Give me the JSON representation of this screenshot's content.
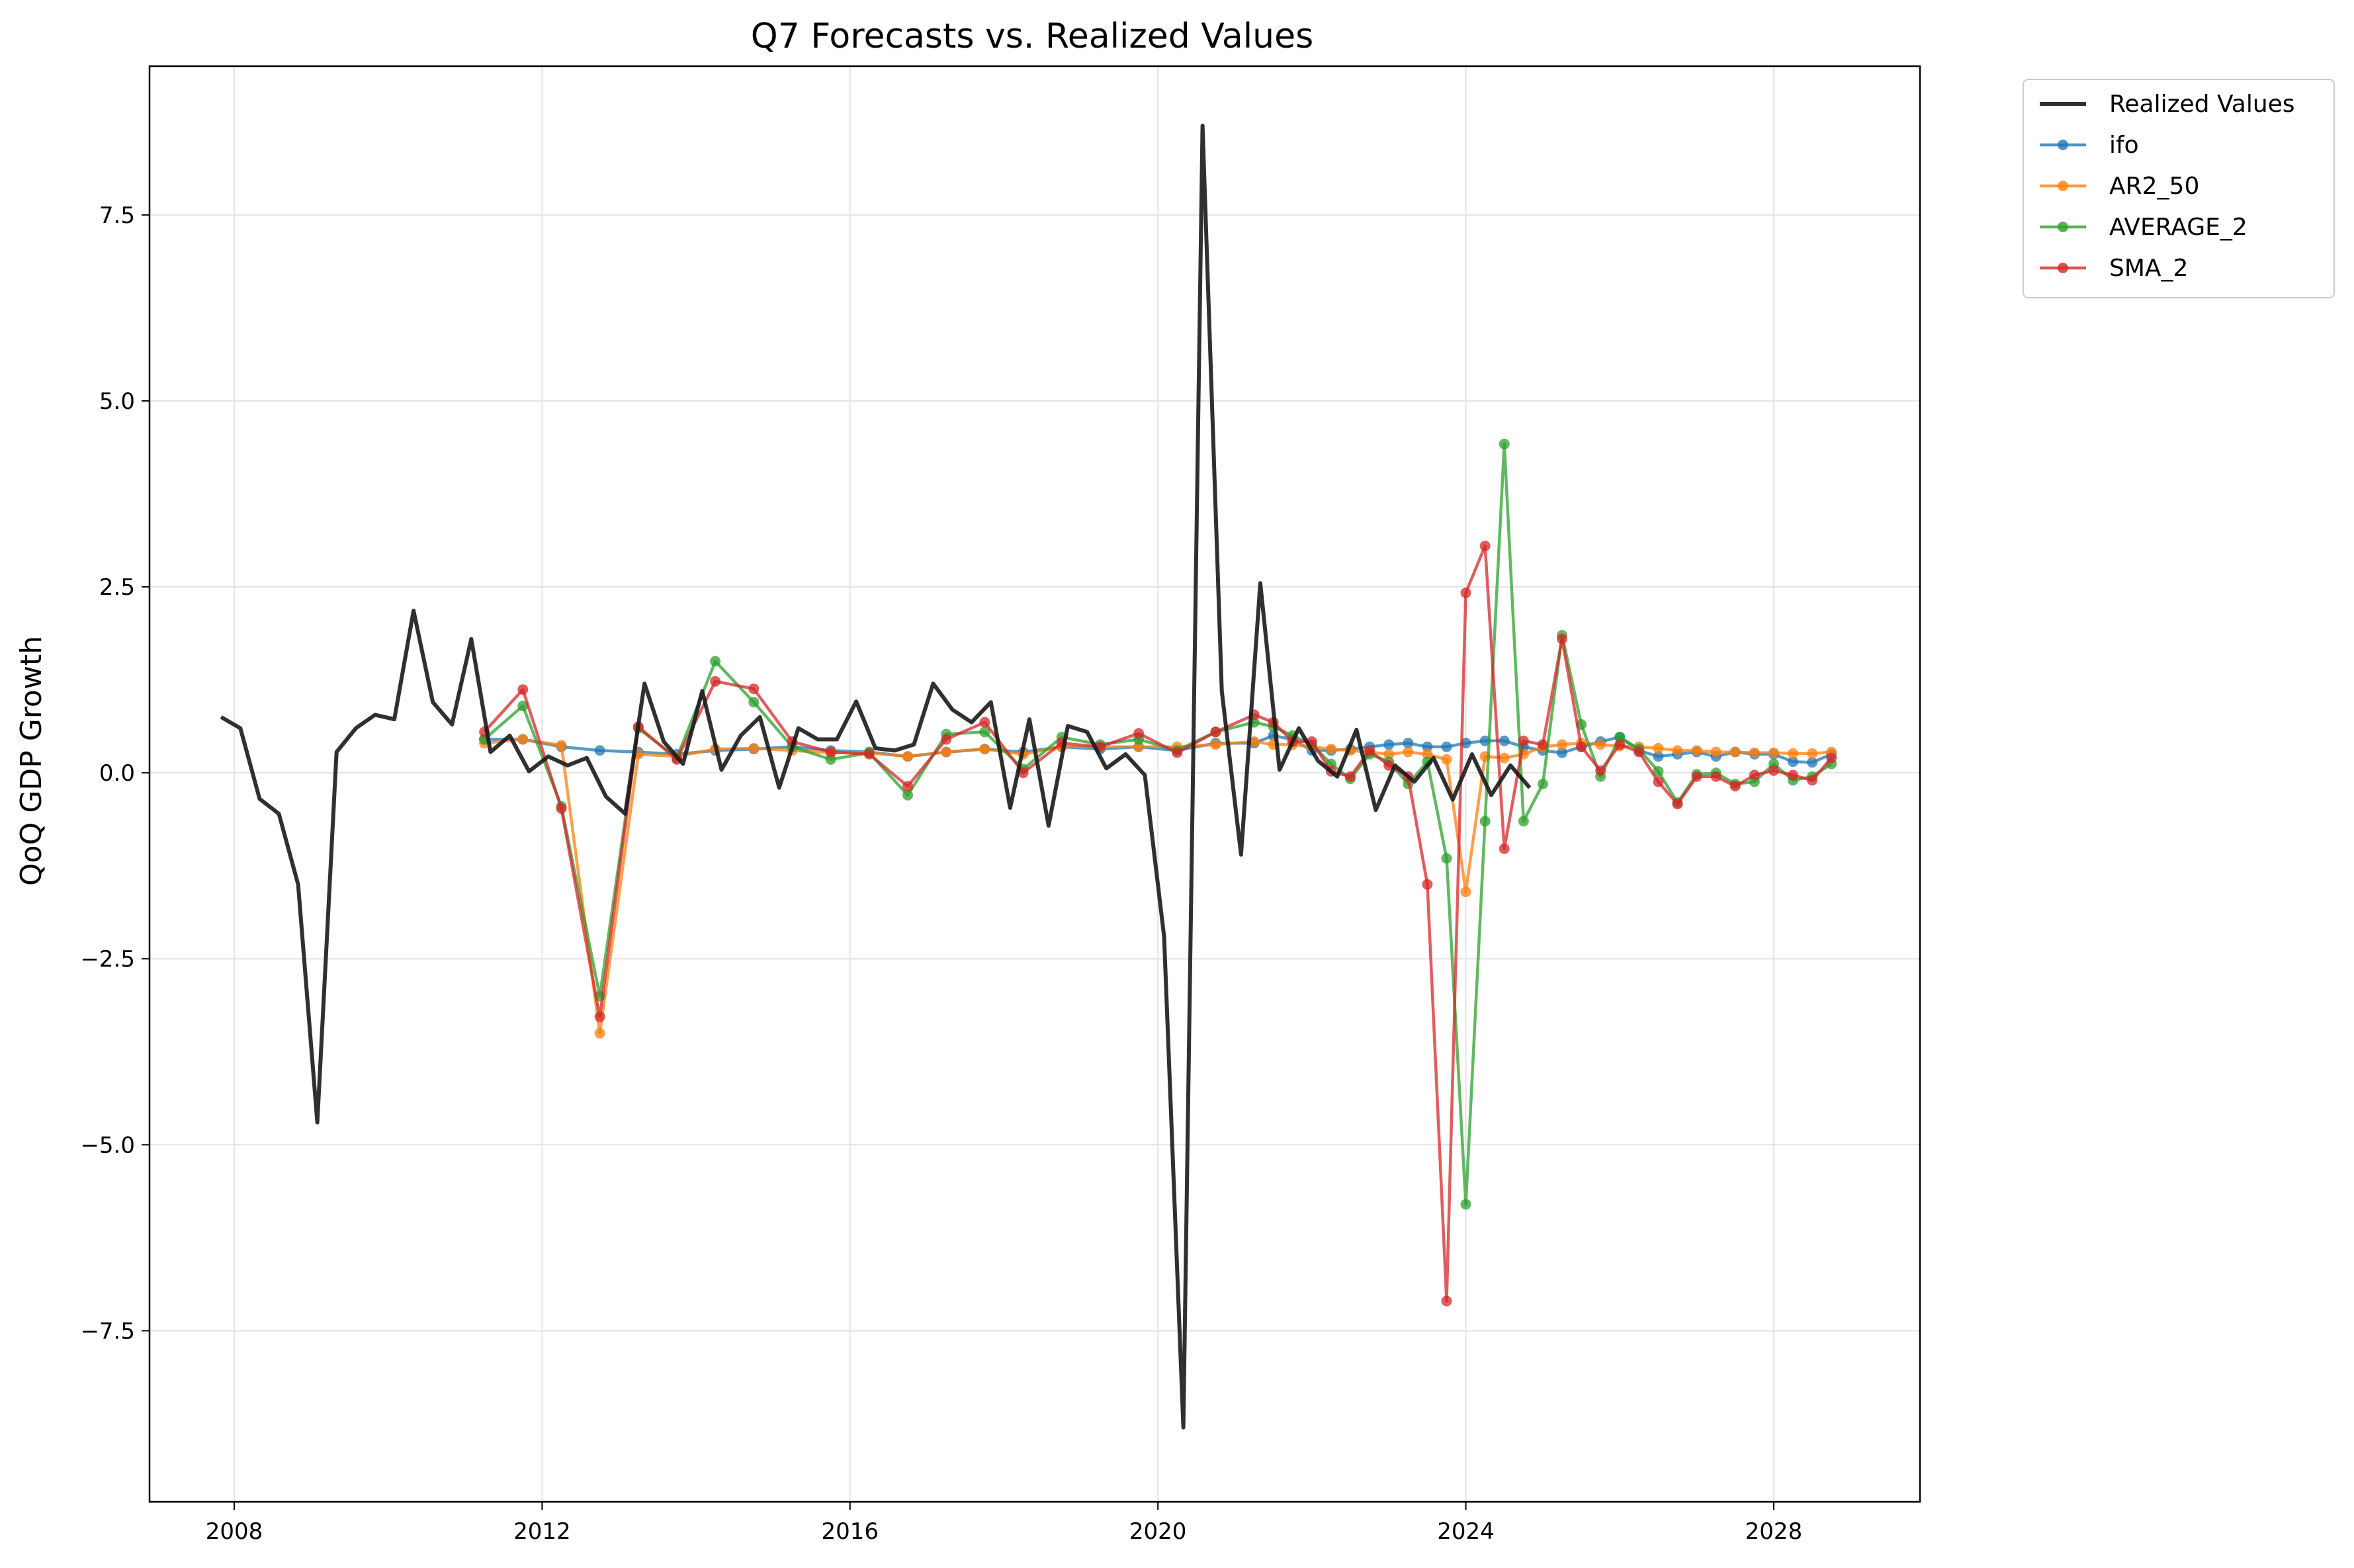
{
  "chart_data": {
    "type": "line",
    "title": "Q7 Forecasts vs. Realized Values",
    "xlabel": "",
    "ylabel": "QoQ GDP Growth",
    "xlim": [
      2006.9,
      2029.9
    ],
    "ylim": [
      -9.8,
      9.5
    ],
    "x_ticks": [
      2008,
      2012,
      2016,
      2020,
      2024,
      2028
    ],
    "x_tick_labels": [
      "2008",
      "2012",
      "2016",
      "2020",
      "2024",
      "2028"
    ],
    "y_ticks": [
      -7.5,
      -5.0,
      -2.5,
      0.0,
      2.5,
      5.0,
      7.5
    ],
    "y_tick_labels": [
      "−7.5",
      "−5.0",
      "−2.5",
      "0.0",
      "2.5",
      "5.0",
      "7.5"
    ],
    "grid": true,
    "legend_position": "outside top-right",
    "series": [
      {
        "name": "Realized Values",
        "color": "#1a1a1a",
        "markers": false,
        "x": [
          2007.83,
          2008.08,
          2008.33,
          2008.58,
          2008.83,
          2009.08,
          2009.33,
          2009.58,
          2009.83,
          2010.08,
          2010.33,
          2010.58,
          2010.83,
          2011.08,
          2011.33,
          2011.58,
          2011.83,
          2012.08,
          2012.33,
          2012.58,
          2012.83,
          2013.08,
          2013.33,
          2013.58,
          2013.83,
          2014.08,
          2014.33,
          2014.58,
          2014.83,
          2015.08,
          2015.33,
          2015.58,
          2015.83,
          2016.08,
          2016.33,
          2016.58,
          2016.83,
          2017.08,
          2017.33,
          2017.58,
          2017.83,
          2018.08,
          2018.33,
          2018.58,
          2018.83,
          2019.08,
          2019.33,
          2019.58,
          2019.83,
          2020.08,
          2020.33,
          2020.58,
          2020.83,
          2021.08,
          2021.33,
          2021.58,
          2021.83,
          2022.08,
          2022.33,
          2022.58,
          2022.83,
          2023.08,
          2023.33,
          2023.58,
          2023.83,
          2024.08,
          2024.33,
          2024.58,
          2024.83
        ],
        "y": [
          0.75,
          0.6,
          -0.35,
          -0.55,
          -1.5,
          -4.7,
          0.28,
          0.6,
          0.78,
          0.72,
          2.18,
          0.95,
          0.65,
          1.8,
          0.28,
          0.5,
          0.02,
          0.22,
          0.1,
          0.2,
          -0.32,
          -0.55,
          1.2,
          0.42,
          0.12,
          1.1,
          0.04,
          0.5,
          0.75,
          -0.2,
          0.6,
          0.45,
          0.45,
          0.96,
          0.33,
          0.3,
          0.38,
          1.2,
          0.85,
          0.68,
          0.95,
          -0.47,
          0.72,
          -0.71,
          0.63,
          0.55,
          0.06,
          0.25,
          -0.03,
          -2.2,
          -8.8,
          8.7,
          1.1,
          -1.1,
          2.55,
          0.04,
          0.6,
          0.16,
          -0.05,
          0.58,
          -0.5,
          0.1,
          -0.12,
          0.2,
          -0.36,
          0.25,
          -0.3,
          0.1,
          -0.2
        ]
      },
      {
        "name": "ifo",
        "color": "#1f77b4",
        "markers": true,
        "x": [
          2011.25,
          2011.75,
          2012.25,
          2012.75,
          2013.25,
          2013.75,
          2014.25,
          2014.75,
          2015.25,
          2015.75,
          2016.25,
          2016.75,
          2017.25,
          2017.75,
          2018.25,
          2018.75,
          2019.25,
          2019.75,
          2020.25,
          2020.75,
          2021.25,
          2021.5,
          2021.75,
          2022.0,
          2022.25,
          2022.5,
          2022.75,
          2023.0,
          2023.25,
          2023.5,
          2023.75,
          2024.0,
          2024.25,
          2024.5,
          2024.75,
          2025.0,
          2025.25,
          2025.5,
          2025.75,
          2026.0,
          2026.25,
          2026.5,
          2026.75,
          2027.0,
          2027.25,
          2027.5,
          2027.75,
          2028.0,
          2028.25,
          2028.5,
          2028.75
        ],
        "y": [
          0.45,
          0.45,
          0.35,
          0.3,
          0.28,
          0.25,
          0.3,
          0.32,
          0.35,
          0.3,
          0.28,
          0.22,
          0.28,
          0.32,
          0.28,
          0.35,
          0.32,
          0.35,
          0.3,
          0.4,
          0.4,
          0.5,
          0.45,
          0.3,
          0.3,
          0.32,
          0.35,
          0.38,
          0.4,
          0.35,
          0.35,
          0.4,
          0.43,
          0.43,
          0.35,
          0.3,
          0.27,
          0.35,
          0.42,
          0.48,
          0.3,
          0.22,
          0.25,
          0.28,
          0.22,
          0.28,
          0.25,
          0.25,
          0.15,
          0.14,
          0.25
        ]
      },
      {
        "name": "AR2_50",
        "color": "#ff7f0e",
        "markers": true,
        "x": [
          2011.25,
          2011.75,
          2012.25,
          2012.75,
          2013.25,
          2013.75,
          2014.25,
          2014.75,
          2015.25,
          2015.75,
          2016.25,
          2016.75,
          2017.25,
          2017.75,
          2018.25,
          2018.75,
          2019.25,
          2019.75,
          2020.25,
          2020.75,
          2021.25,
          2021.5,
          2021.75,
          2022.0,
          2022.25,
          2022.5,
          2022.75,
          2023.0,
          2023.25,
          2023.5,
          2023.75,
          2024.0,
          2024.25,
          2024.5,
          2024.75,
          2025.0,
          2025.25,
          2025.5,
          2025.75,
          2026.0,
          2026.25,
          2026.5,
          2026.75,
          2027.0,
          2027.25,
          2027.5,
          2027.75,
          2028.0,
          2028.25,
          2028.5,
          2028.75
        ],
        "y": [
          0.4,
          0.45,
          0.37,
          -3.5,
          0.25,
          0.22,
          0.32,
          0.33,
          0.3,
          0.27,
          0.27,
          0.22,
          0.28,
          0.32,
          0.25,
          0.35,
          0.35,
          0.35,
          0.35,
          0.38,
          0.42,
          0.38,
          0.38,
          0.35,
          0.32,
          0.3,
          0.28,
          0.25,
          0.28,
          0.25,
          0.18,
          -1.6,
          0.22,
          0.2,
          0.25,
          0.35,
          0.38,
          0.4,
          0.38,
          0.36,
          0.35,
          0.33,
          0.3,
          0.3,
          0.28,
          0.28,
          0.27,
          0.27,
          0.26,
          0.26,
          0.28
        ]
      },
      {
        "name": "AVERAGE_2",
        "color": "#2ca02c",
        "markers": true,
        "x": [
          2011.25,
          2011.75,
          2012.25,
          2012.75,
          2013.25,
          2013.75,
          2014.25,
          2014.75,
          2015.25,
          2015.75,
          2016.25,
          2016.75,
          2017.25,
          2017.75,
          2018.25,
          2018.75,
          2019.25,
          2019.75,
          2020.25,
          2020.75,
          2021.25,
          2021.5,
          2021.75,
          2022.0,
          2022.25,
          2022.5,
          2022.75,
          2023.0,
          2023.25,
          2023.5,
          2023.75,
          2024.0,
          2024.25,
          2024.5,
          2024.75,
          2025.0,
          2025.25,
          2025.5,
          2025.75,
          2026.0,
          2026.25,
          2026.5,
          2026.75,
          2027.0,
          2027.25,
          2027.5,
          2027.75,
          2028.0,
          2028.25,
          2028.5,
          2028.75
        ],
        "y": [
          0.45,
          0.9,
          -0.45,
          -3.0,
          0.6,
          0.2,
          1.5,
          0.95,
          0.35,
          0.18,
          0.27,
          -0.3,
          0.52,
          0.55,
          0.05,
          0.48,
          0.38,
          0.45,
          0.3,
          0.55,
          0.68,
          0.62,
          0.5,
          0.38,
          0.12,
          -0.08,
          0.25,
          0.15,
          -0.15,
          0.15,
          -1.15,
          -5.8,
          -0.65,
          4.42,
          -0.65,
          -0.15,
          1.85,
          0.65,
          -0.05,
          0.48,
          0.32,
          0.02,
          -0.4,
          -0.02,
          0.0,
          -0.15,
          -0.12,
          0.12,
          -0.1,
          -0.05,
          0.12
        ]
      },
      {
        "name": "SMA_2",
        "color": "#d62728",
        "markers": true,
        "x": [
          2011.25,
          2011.75,
          2012.25,
          2012.75,
          2013.25,
          2013.75,
          2014.25,
          2014.75,
          2015.25,
          2015.75,
          2016.25,
          2016.75,
          2017.25,
          2017.75,
          2018.25,
          2018.75,
          2019.25,
          2019.75,
          2020.25,
          2020.75,
          2021.25,
          2021.5,
          2021.75,
          2022.0,
          2022.25,
          2022.5,
          2022.75,
          2023.0,
          2023.25,
          2023.5,
          2023.75,
          2024.0,
          2024.25,
          2024.5,
          2024.75,
          2025.0,
          2025.25,
          2025.5,
          2025.75,
          2026.0,
          2026.25,
          2026.5,
          2026.75,
          2027.0,
          2027.25,
          2027.5,
          2027.75,
          2028.0,
          2028.25,
          2028.5,
          2028.75
        ],
        "y": [
          0.55,
          1.12,
          -0.48,
          -3.28,
          0.62,
          0.18,
          1.23,
          1.13,
          0.42,
          0.28,
          0.25,
          -0.18,
          0.45,
          0.68,
          0.0,
          0.4,
          0.35,
          0.53,
          0.27,
          0.55,
          0.78,
          0.68,
          0.42,
          0.42,
          0.02,
          -0.05,
          0.3,
          0.1,
          -0.05,
          -1.5,
          -7.1,
          2.42,
          3.05,
          -1.02,
          0.43,
          0.38,
          1.8,
          0.35,
          0.03,
          0.38,
          0.28,
          -0.12,
          -0.42,
          -0.05,
          -0.05,
          -0.18,
          -0.03,
          0.03,
          -0.03,
          -0.1,
          0.2
        ]
      }
    ]
  }
}
